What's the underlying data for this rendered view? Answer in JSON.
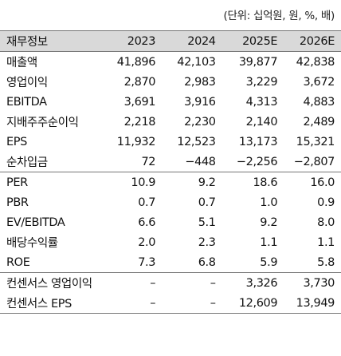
{
  "unit_note": "(단위: 십억원, 원, %, 배)",
  "header": [
    "재무정보",
    "2023",
    "2024",
    "2025E",
    "2026E"
  ],
  "rows": [
    {
      "label": "매출액",
      "values": [
        "41,896",
        "42,103",
        "39,877",
        "42,838"
      ]
    },
    {
      "label": "영업이익",
      "values": [
        "2,870",
        "2,983",
        "3,229",
        "3,672"
      ]
    },
    {
      "label": "EBITDA",
      "values": [
        "3,691",
        "3,916",
        "4,313",
        "4,883"
      ]
    },
    {
      "label": "지배주주순이익",
      "values": [
        "2,218",
        "2,230",
        "2,140",
        "2,489"
      ]
    },
    {
      "label": "EPS",
      "values": [
        "11,932",
        "12,523",
        "13,173",
        "15,321"
      ]
    },
    {
      "label": "순차입금",
      "values": [
        "72",
        "−448",
        "−2,256",
        "−2,807"
      ]
    },
    {
      "label": "PER",
      "values": [
        "10.9",
        "9.2",
        "18.6",
        "16.0"
      ]
    },
    {
      "label": "PBR",
      "values": [
        "0.7",
        "0.7",
        "1.0",
        "0.9"
      ]
    },
    {
      "label": "EV/EBITDA",
      "values": [
        "6.6",
        "5.1",
        "9.2",
        "8.0"
      ]
    },
    {
      "label": "배당수익률",
      "values": [
        "2.0",
        "2.3",
        "1.1",
        "1.1"
      ]
    },
    {
      "label": "ROE",
      "values": [
        "7.3",
        "6.8",
        "5.9",
        "5.8"
      ]
    },
    {
      "label": "컨센서스 영업이익",
      "values": [
        "–",
        "–",
        "3,326",
        "3,730"
      ]
    },
    {
      "label": "컨센서스 EPS",
      "values": [
        "–",
        "–",
        "12,609",
        "13,949"
      ]
    }
  ]
}
